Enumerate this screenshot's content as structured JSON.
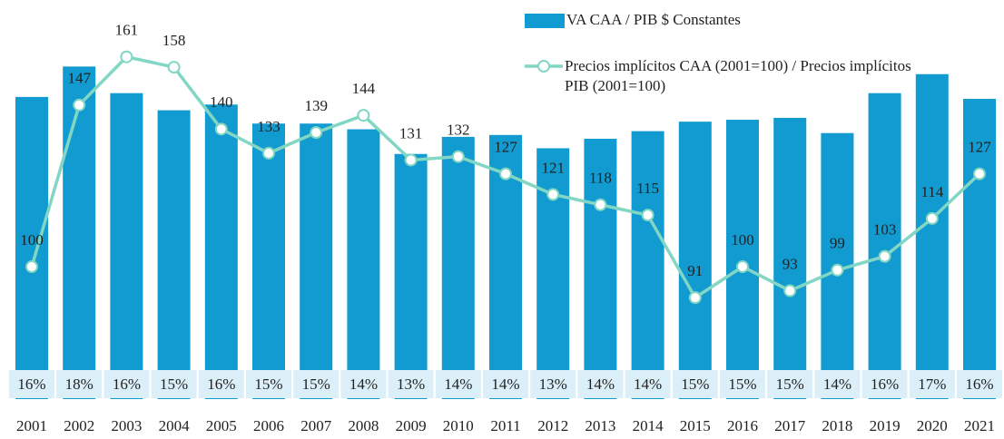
{
  "chart_data": {
    "type": "bar",
    "categories": [
      "2001",
      "2002",
      "2003",
      "2004",
      "2005",
      "2006",
      "2007",
      "2008",
      "2009",
      "2010",
      "2011",
      "2012",
      "2013",
      "2014",
      "2015",
      "2016",
      "2017",
      "2018",
      "2019",
      "2020",
      "2021"
    ],
    "series": [
      {
        "name": "VA CAA / PIB $ Constantes",
        "type": "bar",
        "color": "#119bd0",
        "values": [
          15.9,
          17.5,
          16.1,
          15.2,
          15.5,
          14.5,
          14.5,
          14.2,
          12.9,
          13.8,
          13.9,
          13.2,
          13.7,
          14.1,
          14.6,
          14.7,
          14.8,
          14.0,
          16.1,
          17.1,
          15.8
        ],
        "value_labels": [
          "16%",
          "18%",
          "16%",
          "15%",
          "16%",
          "15%",
          "15%",
          "14%",
          "13%",
          "14%",
          "14%",
          "13%",
          "14%",
          "14%",
          "15%",
          "15%",
          "15%",
          "14%",
          "16%",
          "17%",
          "16%"
        ]
      },
      {
        "name": "Precios implícitos CAA (2001=100) / Precios implícitos PIB (2001=100)",
        "type": "line",
        "axis": "y2",
        "color": "#82d6c4",
        "values": [
          100,
          147,
          161,
          158,
          140,
          133,
          139,
          144,
          131,
          132,
          127,
          121,
          118,
          115,
          91,
          100,
          93,
          99,
          103,
          114,
          127
        ]
      }
    ],
    "ylim": [
      0,
      20
    ],
    "y2lim": [
      61.5,
      172
    ]
  }
}
